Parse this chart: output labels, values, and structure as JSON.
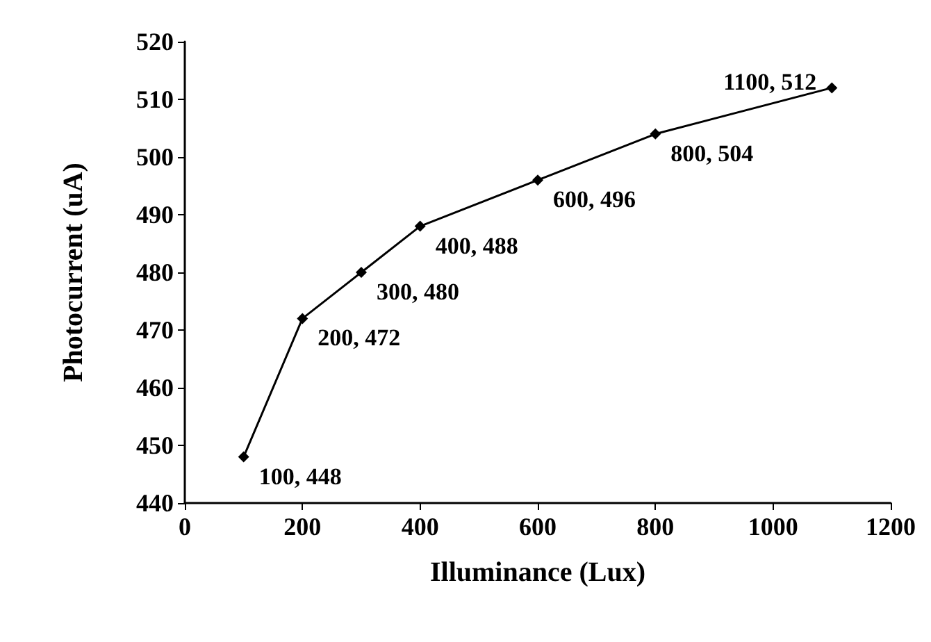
{
  "chart_data": {
    "type": "line",
    "xlabel": "Illuminance (Lux)",
    "ylabel": "Photocurrent (uA)",
    "x": [
      100,
      200,
      300,
      400,
      600,
      800,
      1100
    ],
    "series": [
      {
        "color": "#000000",
        "values": [
          448,
          472,
          480,
          488,
          496,
          504,
          512
        ],
        "value_labels": [
          "100, 448",
          "200, 472",
          "300, 480",
          "400, 488",
          "600, 496",
          "800, 504",
          "1100, 512"
        ]
      }
    ],
    "xlim": [
      0,
      1200
    ],
    "xticks": [
      0,
      200,
      400,
      600,
      800,
      1000,
      1200
    ],
    "ylim": [
      440,
      520
    ],
    "yticks": [
      440,
      450,
      460,
      470,
      480,
      490,
      500,
      510,
      520
    ],
    "grid": false,
    "marker": "diamond",
    "line_style": "solid"
  }
}
